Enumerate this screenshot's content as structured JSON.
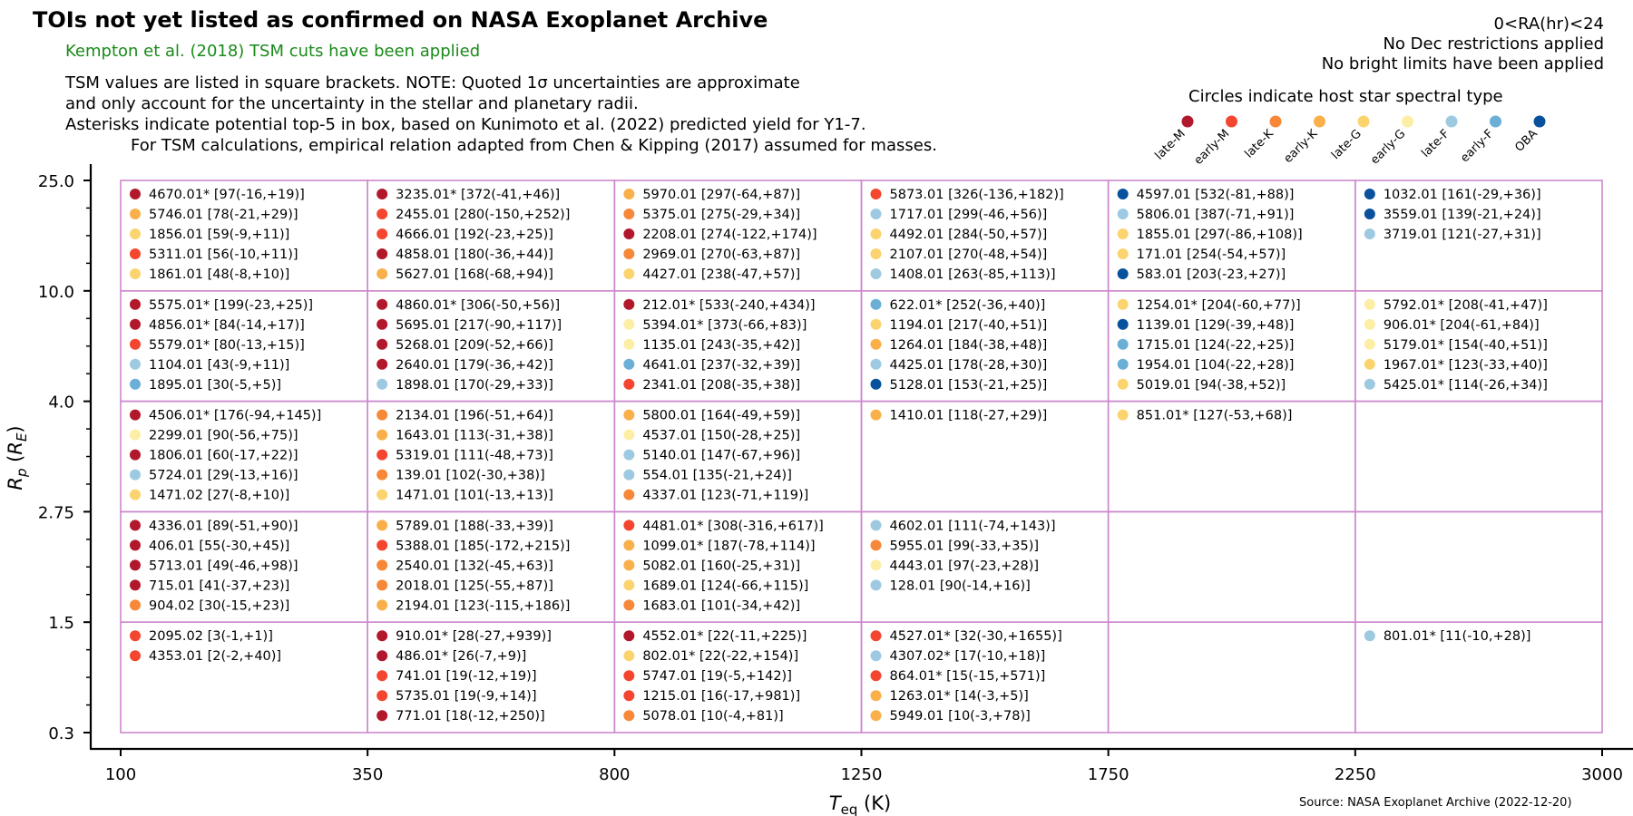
{
  "header": {
    "title": "TOIs not yet listed as confirmed on NASA Exoplanet Archive",
    "subtitle": "Kempton et al. (2018) TSM cuts have been applied",
    "notes": [
      "TSM values are listed in square brackets. NOTE: Quoted 1σ uncertainties are approximate",
      "and only account for the uncertainty in the stellar and planetary radii.",
      "Asterisks indicate potential top-5 in box, based on Kunimoto et al. (2022) predicted yield for Y1-7.",
      "For TSM calculations, empirical relation adapted from Chen & Kipping (2017) assumed for masses."
    ],
    "right_notes": [
      "0<RA(hr)<24",
      "No Dec restrictions applied",
      "No bright limits have been applied"
    ],
    "legend_title": "Circles indicate host star spectral type",
    "source": "Source: NASA Exoplanet Archive (2022-12-20)"
  },
  "legend": [
    {
      "label": "late-M",
      "color": "#b2182b"
    },
    {
      "label": "early-M",
      "color": "#f4462f"
    },
    {
      "label": "late-K",
      "color": "#f68838"
    },
    {
      "label": "early-K",
      "color": "#f9b04a"
    },
    {
      "label": "late-G",
      "color": "#fbd46f"
    },
    {
      "label": "early-G",
      "color": "#fdeea6"
    },
    {
      "label": "late-F",
      "color": "#9ecae1"
    },
    {
      "label": "early-F",
      "color": "#6baed6"
    },
    {
      "label": "OBA",
      "color": "#08519c"
    }
  ],
  "chart_data": {
    "type": "table",
    "xlabel": "T_eq (K)",
    "ylabel": "R_p (R_E)",
    "x_ticks": [
      "100",
      "350",
      "800",
      "1250",
      "1750",
      "2250",
      "3000"
    ],
    "y_ticks": [
      "25.0",
      "10.0",
      "4.0",
      "2.75",
      "1.5",
      "0.3"
    ],
    "rows": [
      [
        [
          [
            "late-M",
            "4670.01* [97(-16,+19)]"
          ],
          [
            "early-K",
            "5746.01 [78(-21,+29)]"
          ],
          [
            "late-G",
            "1856.01 [59(-9,+11)]"
          ],
          [
            "early-M",
            "5311.01 [56(-10,+11)]"
          ],
          [
            "late-G",
            "1861.01 [48(-8,+10)]"
          ]
        ],
        [
          [
            "late-M",
            "3235.01* [372(-41,+46)]"
          ],
          [
            "early-M",
            "2455.01 [280(-150,+252)]"
          ],
          [
            "early-M",
            "4666.01 [192(-23,+25)]"
          ],
          [
            "late-M",
            "4858.01 [180(-36,+44)]"
          ],
          [
            "early-K",
            "5627.01 [168(-68,+94)]"
          ]
        ],
        [
          [
            "early-K",
            "5970.01 [297(-64,+87)]"
          ],
          [
            "late-K",
            "5375.01 [275(-29,+34)]"
          ],
          [
            "late-M",
            "2208.01 [274(-122,+174)]"
          ],
          [
            "late-K",
            "2969.01 [270(-63,+87)]"
          ],
          [
            "late-G",
            "4427.01 [238(-47,+57)]"
          ]
        ],
        [
          [
            "early-M",
            "5873.01 [326(-136,+182)]"
          ],
          [
            "late-F",
            "1717.01 [299(-46,+56)]"
          ],
          [
            "late-G",
            "4492.01 [284(-50,+57)]"
          ],
          [
            "late-G",
            "2107.01 [270(-48,+54)]"
          ],
          [
            "late-F",
            "1408.01 [263(-85,+113)]"
          ]
        ],
        [
          [
            "OBA",
            "4597.01 [532(-81,+88)]"
          ],
          [
            "late-F",
            "5806.01 [387(-71,+91)]"
          ],
          [
            "late-G",
            "1855.01 [297(-86,+108)]"
          ],
          [
            "late-G",
            "171.01 [254(-54,+57)]"
          ],
          [
            "OBA",
            "583.01 [203(-23,+27)]"
          ]
        ],
        [
          [
            "OBA",
            "1032.01 [161(-29,+36)]"
          ],
          [
            "OBA",
            "3559.01 [139(-21,+24)]"
          ],
          [
            "late-F",
            "3719.01 [121(-27,+31)]"
          ]
        ]
      ],
      [
        [
          [
            "late-M",
            "5575.01* [199(-23,+25)]"
          ],
          [
            "late-M",
            "4856.01* [84(-14,+17)]"
          ],
          [
            "early-M",
            "5579.01* [80(-13,+15)]"
          ],
          [
            "late-F",
            "1104.01 [43(-9,+11)]"
          ],
          [
            "early-F",
            "1895.01 [30(-5,+5)]"
          ]
        ],
        [
          [
            "late-M",
            "4860.01* [306(-50,+56)]"
          ],
          [
            "late-M",
            "5695.01 [217(-90,+117)]"
          ],
          [
            "late-M",
            "5268.01 [209(-52,+66)]"
          ],
          [
            "late-M",
            "2640.01 [179(-36,+42)]"
          ],
          [
            "late-F",
            "1898.01 [170(-29,+33)]"
          ]
        ],
        [
          [
            "late-M",
            "212.01* [533(-240,+434)]"
          ],
          [
            "early-G",
            "5394.01* [373(-66,+83)]"
          ],
          [
            "early-G",
            "1135.01 [243(-35,+42)]"
          ],
          [
            "early-F",
            "4641.01 [237(-32,+39)]"
          ],
          [
            "early-M",
            "2341.01 [208(-35,+38)]"
          ]
        ],
        [
          [
            "early-F",
            "622.01* [252(-36,+40)]"
          ],
          [
            "late-G",
            "1194.01 [217(-40,+51)]"
          ],
          [
            "early-K",
            "1264.01 [184(-38,+48)]"
          ],
          [
            "late-F",
            "4425.01 [178(-28,+30)]"
          ],
          [
            "OBA",
            "5128.01 [153(-21,+25)]"
          ]
        ],
        [
          [
            "late-G",
            "1254.01* [204(-60,+77)]"
          ],
          [
            "OBA",
            "1139.01 [129(-39,+48)]"
          ],
          [
            "early-F",
            "1715.01 [124(-22,+25)]"
          ],
          [
            "early-F",
            "1954.01 [104(-22,+28)]"
          ],
          [
            "late-G",
            "5019.01 [94(-38,+52)]"
          ]
        ],
        [
          [
            "early-G",
            "5792.01* [208(-41,+47)]"
          ],
          [
            "early-G",
            "906.01* [204(-61,+84)]"
          ],
          [
            "early-G",
            "5179.01* [154(-40,+51)]"
          ],
          [
            "late-G",
            "1967.01* [123(-33,+40)]"
          ],
          [
            "late-F",
            "5425.01* [114(-26,+34)]"
          ]
        ]
      ],
      [
        [
          [
            "late-M",
            "4506.01* [176(-94,+145)]"
          ],
          [
            "early-G",
            "2299.01 [90(-56,+75)]"
          ],
          [
            "late-M",
            "1806.01 [60(-17,+22)]"
          ],
          [
            "late-F",
            "5724.01 [29(-13,+16)]"
          ],
          [
            "late-G",
            "1471.02 [27(-8,+10)]"
          ]
        ],
        [
          [
            "late-K",
            "2134.01 [196(-51,+64)]"
          ],
          [
            "early-K",
            "1643.01 [113(-31,+38)]"
          ],
          [
            "early-M",
            "5319.01 [111(-48,+73)]"
          ],
          [
            "late-K",
            "139.01 [102(-30,+38)]"
          ],
          [
            "late-G",
            "1471.01 [101(-13,+13)]"
          ]
        ],
        [
          [
            "early-K",
            "5800.01 [164(-49,+59)]"
          ],
          [
            "early-G",
            "4537.01 [150(-28,+25)]"
          ],
          [
            "late-F",
            "5140.01 [147(-67,+96)]"
          ],
          [
            "late-F",
            "554.01 [135(-21,+24)]"
          ],
          [
            "late-K",
            "4337.01 [123(-71,+119)]"
          ]
        ],
        [
          [
            "early-K",
            "1410.01 [118(-27,+29)]"
          ]
        ],
        [
          [
            "late-G",
            "851.01* [127(-53,+68)]"
          ]
        ],
        []
      ],
      [
        [
          [
            "late-M",
            "4336.01 [89(-51,+90)]"
          ],
          [
            "late-M",
            "406.01 [55(-30,+45)]"
          ],
          [
            "late-M",
            "5713.01 [49(-46,+98)]"
          ],
          [
            "late-M",
            "715.01 [41(-37,+23)]"
          ],
          [
            "late-K",
            "904.02 [30(-15,+23)]"
          ]
        ],
        [
          [
            "early-K",
            "5789.01 [188(-33,+39)]"
          ],
          [
            "early-M",
            "5388.01 [185(-172,+215)]"
          ],
          [
            "late-K",
            "2540.01 [132(-45,+63)]"
          ],
          [
            "late-K",
            "2018.01 [125(-55,+87)]"
          ],
          [
            "early-K",
            "2194.01 [123(-115,+186)]"
          ]
        ],
        [
          [
            "early-M",
            "4481.01* [308(-316,+617)]"
          ],
          [
            "early-K",
            "1099.01* [187(-78,+114)]"
          ],
          [
            "early-K",
            "5082.01 [160(-25,+31)]"
          ],
          [
            "late-G",
            "1689.01 [124(-66,+115)]"
          ],
          [
            "late-K",
            "1683.01 [101(-34,+42)]"
          ]
        ],
        [
          [
            "late-F",
            "4602.01 [111(-74,+143)]"
          ],
          [
            "late-K",
            "5955.01 [99(-33,+35)]"
          ],
          [
            "early-G",
            "4443.01 [97(-23,+28)]"
          ],
          [
            "late-F",
            "128.01 [90(-14,+16)]"
          ]
        ],
        [],
        []
      ],
      [
        [
          [
            "early-M",
            "2095.02 [3(-1,+1)]"
          ],
          [
            "early-M",
            "4353.01 [2(-2,+40)]"
          ]
        ],
        [
          [
            "late-M",
            "910.01* [28(-27,+939)]"
          ],
          [
            "late-M",
            "486.01* [26(-7,+9)]"
          ],
          [
            "early-M",
            "741.01 [19(-12,+19)]"
          ],
          [
            "early-M",
            "5735.01 [19(-9,+14)]"
          ],
          [
            "late-M",
            "771.01 [18(-12,+250)]"
          ]
        ],
        [
          [
            "late-M",
            "4552.01* [22(-11,+225)]"
          ],
          [
            "late-G",
            "802.01* [22(-22,+154)]"
          ],
          [
            "early-M",
            "5747.01 [19(-5,+142)]"
          ],
          [
            "early-M",
            "1215.01 [16(-17,+981)]"
          ],
          [
            "late-K",
            "5078.01 [10(-4,+81)]"
          ]
        ],
        [
          [
            "early-M",
            "4527.01* [32(-30,+1655)]"
          ],
          [
            "late-F",
            "4307.02* [17(-10,+18)]"
          ],
          [
            "early-M",
            "864.01* [15(-15,+571)]"
          ],
          [
            "early-K",
            "1263.01* [14(-3,+5)]"
          ],
          [
            "early-K",
            "5949.01 [10(-3,+78)]"
          ]
        ],
        [],
        [
          [
            "late-F",
            "801.01* [11(-10,+28)]"
          ]
        ]
      ]
    ]
  }
}
